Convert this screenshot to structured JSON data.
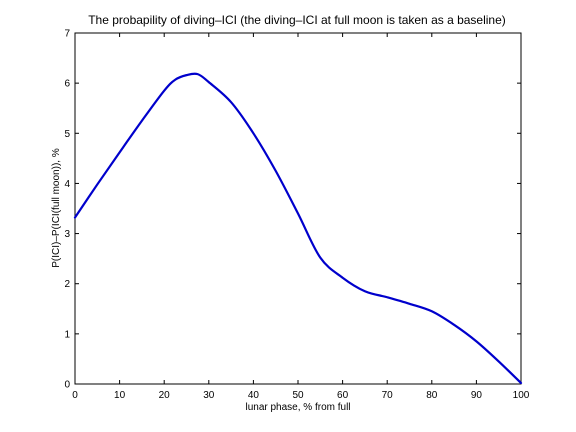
{
  "chart_data": {
    "type": "line",
    "title": "The probapility of diving–ICI (the diving–ICI at full moon is taken as a baseline)",
    "xlabel": "lunar phase, % from full",
    "ylabel": "P(ICI)–P(ICI(full moon)), %",
    "xlim": [
      0,
      100
    ],
    "ylim": [
      0,
      7
    ],
    "x_ticks": [
      "0",
      "10",
      "20",
      "30",
      "40",
      "50",
      "60",
      "70",
      "80",
      "90",
      "100"
    ],
    "y_ticks": [
      "0",
      "1",
      "2",
      "3",
      "4",
      "5",
      "6",
      "7"
    ],
    "grid": false,
    "series": [
      {
        "color": "#0000cc",
        "x": [
          0,
          5,
          10,
          15,
          20,
          22.5,
          25,
          27.5,
          30,
          35,
          40,
          45,
          50,
          55,
          60,
          65,
          70,
          75,
          80,
          85,
          90,
          95,
          100
        ],
        "y": [
          3.32,
          3.98,
          4.62,
          5.25,
          5.85,
          6.07,
          6.16,
          6.18,
          6.02,
          5.62,
          5.0,
          4.25,
          3.4,
          2.52,
          2.12,
          1.85,
          1.73,
          1.6,
          1.45,
          1.18,
          0.85,
          0.45,
          0.02
        ]
      }
    ]
  }
}
